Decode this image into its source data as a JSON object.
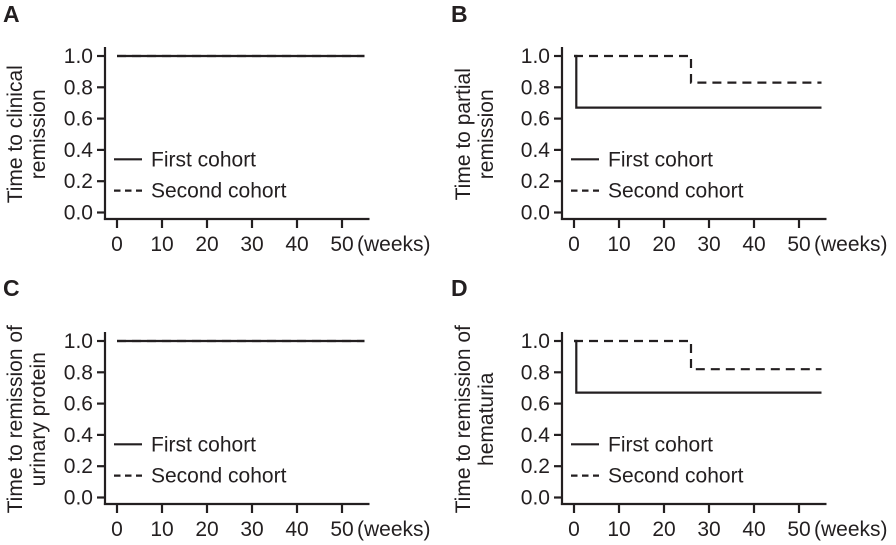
{
  "figure": {
    "background": "#ffffff",
    "line_color": "#231f20"
  },
  "chart_data": [
    {
      "type": "line",
      "panel_label": "A",
      "ylabel_lines": [
        "Time to clinical",
        "remission"
      ],
      "xlabel": "(weeks)",
      "xticks": [
        0,
        10,
        20,
        30,
        40,
        50
      ],
      "xticklabels": [
        "0",
        "10",
        "20",
        "30",
        "40",
        "50"
      ],
      "yticks": [
        1.0,
        0.8,
        0.6,
        0.4,
        0.2,
        0.0
      ],
      "yticklabels": [
        "1.0",
        "0.8",
        "0.6",
        "0.4",
        "0.2",
        "0.0"
      ],
      "xlim": [
        0,
        55
      ],
      "ylim": [
        0.0,
        1.0
      ],
      "grid": false,
      "legend_position": "inside-lower-left",
      "series": [
        {
          "name": "First cohort",
          "style": "solid",
          "points": [
            [
              0,
              1.0
            ],
            [
              55,
              1.0
            ]
          ]
        },
        {
          "name": "Second cohort",
          "style": "dashed",
          "points": [
            [
              0,
              1.0
            ],
            [
              55,
              1.0
            ]
          ]
        }
      ]
    },
    {
      "type": "line",
      "panel_label": "B",
      "ylabel_lines": [
        "Time to partial",
        "remission"
      ],
      "xlabel": "(weeks)",
      "xticks": [
        0,
        10,
        20,
        30,
        40,
        50
      ],
      "xticklabels": [
        "0",
        "10",
        "20",
        "30",
        "40",
        "50"
      ],
      "yticks": [
        1.0,
        0.8,
        0.6,
        0.4,
        0.2,
        0.0
      ],
      "yticklabels": [
        "1.0",
        "0.8",
        "0.6",
        "0.4",
        "0.2",
        "0.0"
      ],
      "xlim": [
        0,
        55
      ],
      "ylim": [
        0.0,
        1.0
      ],
      "grid": false,
      "legend_position": "inside-lower-left",
      "series": [
        {
          "name": "First cohort",
          "style": "solid",
          "points": [
            [
              0,
              1.0
            ],
            [
              0.5,
              1.0
            ],
            [
              0.5,
              0.67
            ],
            [
              55,
              0.67
            ]
          ]
        },
        {
          "name": "Second cohort",
          "style": "dashed",
          "points": [
            [
              0,
              1.0
            ],
            [
              26,
              1.0
            ],
            [
              26,
              0.83
            ],
            [
              55,
              0.83
            ]
          ]
        }
      ]
    },
    {
      "type": "line",
      "panel_label": "C",
      "ylabel_lines": [
        "Time to remission of",
        "urinary protein"
      ],
      "xlabel": "(weeks)",
      "xticks": [
        0,
        10,
        20,
        30,
        40,
        50
      ],
      "xticklabels": [
        "0",
        "10",
        "20",
        "30",
        "40",
        "50"
      ],
      "yticks": [
        1.0,
        0.8,
        0.6,
        0.4,
        0.2,
        0.0
      ],
      "yticklabels": [
        "1.0",
        "0.8",
        "0.6",
        "0.4",
        "0.2",
        "0.0"
      ],
      "xlim": [
        0,
        55
      ],
      "ylim": [
        0.0,
        1.0
      ],
      "grid": false,
      "legend_position": "inside-lower-left",
      "series": [
        {
          "name": "First cohort",
          "style": "solid",
          "points": [
            [
              0,
              1.0
            ],
            [
              55,
              1.0
            ]
          ]
        },
        {
          "name": "Second cohort",
          "style": "dashed",
          "points": [
            [
              0,
              1.0
            ],
            [
              55,
              1.0
            ]
          ]
        }
      ]
    },
    {
      "type": "line",
      "panel_label": "D",
      "ylabel_lines": [
        "Time to remission of",
        "hematuria"
      ],
      "xlabel": "(weeks)",
      "xticks": [
        0,
        10,
        20,
        30,
        40,
        50
      ],
      "xticklabels": [
        "0",
        "10",
        "20",
        "30",
        "40",
        "50"
      ],
      "yticks": [
        1.0,
        0.8,
        0.6,
        0.4,
        0.2,
        0.0
      ],
      "yticklabels": [
        "1.0",
        "0.8",
        "0.6",
        "0.4",
        "0.2",
        "0.0"
      ],
      "xlim": [
        0,
        55
      ],
      "ylim": [
        0.0,
        1.0
      ],
      "grid": false,
      "legend_position": "inside-lower-left",
      "series": [
        {
          "name": "First cohort",
          "style": "solid",
          "points": [
            [
              0,
              1.0
            ],
            [
              0.5,
              1.0
            ],
            [
              0.5,
              0.67
            ],
            [
              55,
              0.67
            ]
          ]
        },
        {
          "name": "Second cohort",
          "style": "dashed",
          "points": [
            [
              0,
              1.0
            ],
            [
              26,
              1.0
            ],
            [
              26,
              0.82
            ],
            [
              55,
              0.82
            ]
          ]
        }
      ]
    }
  ]
}
